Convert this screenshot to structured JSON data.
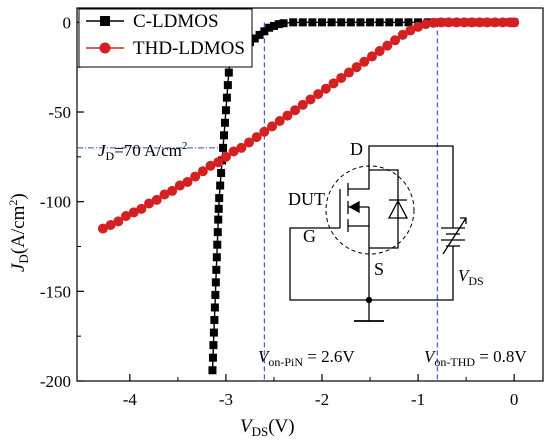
{
  "chart_data": {
    "type": "scatter",
    "xlabel": {
      "main": "V",
      "sub": "DS",
      "unit": "(V)"
    },
    "ylabel": {
      "main": "J",
      "sub": "D",
      "unit": "(A/cm",
      "sup": "2",
      "close": ")"
    },
    "xlim": [
      -4.55,
      0.3
    ],
    "ylim": [
      -200,
      8
    ],
    "x_ticks": [
      -4,
      -3,
      -2,
      -1,
      0
    ],
    "y_ticks": [
      0,
      -50,
      -100,
      -150,
      -200
    ],
    "grid": false,
    "legend_position": "top-left",
    "series": [
      {
        "name": "C-LDMOS",
        "color": "#000000",
        "marker": "square",
        "points": [
          [
            -3.14,
            -194
          ],
          [
            -3.135,
            -187
          ],
          [
            -3.13,
            -180
          ],
          [
            -3.125,
            -173
          ],
          [
            -3.12,
            -166
          ],
          [
            -3.115,
            -159
          ],
          [
            -3.11,
            -152
          ],
          [
            -3.105,
            -145
          ],
          [
            -3.1,
            -138
          ],
          [
            -3.095,
            -131
          ],
          [
            -3.09,
            -124
          ],
          [
            -3.085,
            -117
          ],
          [
            -3.08,
            -110
          ],
          [
            -3.075,
            -104
          ],
          [
            -3.07,
            -98
          ],
          [
            -3.06,
            -91
          ],
          [
            -3.05,
            -84
          ],
          [
            -3.04,
            -77
          ],
          [
            -3.03,
            -70
          ],
          [
            -3.02,
            -63
          ],
          [
            -3.01,
            -56
          ],
          [
            -3.0,
            -49
          ],
          [
            -2.99,
            -42
          ],
          [
            -2.98,
            -35
          ],
          [
            -2.97,
            -28
          ],
          [
            -2.96,
            -22
          ],
          [
            -2.94,
            -18
          ],
          [
            -2.91,
            -16
          ],
          [
            -2.88,
            -15
          ],
          [
            -2.84,
            -14
          ],
          [
            -2.8,
            -13
          ],
          [
            -2.75,
            -11
          ],
          [
            -2.7,
            -9
          ],
          [
            -2.65,
            -7
          ],
          [
            -2.6,
            -5
          ],
          [
            -2.55,
            -3
          ],
          [
            -2.5,
            -2
          ],
          [
            -2.45,
            -1
          ],
          [
            -2.4,
            -0.5
          ],
          [
            -2.3,
            0
          ],
          [
            -2.2,
            0
          ],
          [
            -2.1,
            0
          ],
          [
            -2.0,
            0
          ],
          [
            -1.9,
            0
          ],
          [
            -1.8,
            0
          ],
          [
            -1.7,
            0
          ],
          [
            -1.6,
            0
          ],
          [
            -1.5,
            0
          ],
          [
            -1.4,
            0
          ],
          [
            -1.3,
            0
          ],
          [
            -1.2,
            0
          ],
          [
            -1.1,
            0
          ],
          [
            -1.0,
            0
          ],
          [
            -0.9,
            0
          ],
          [
            -0.8,
            0
          ],
          [
            -0.7,
            0
          ],
          [
            -0.6,
            0
          ],
          [
            -0.5,
            0
          ],
          [
            -0.4,
            0
          ],
          [
            -0.3,
            0
          ],
          [
            -0.2,
            0
          ],
          [
            -0.1,
            0
          ],
          [
            0.0,
            0
          ]
        ]
      },
      {
        "name": "THD-LDMOS",
        "color": "#d42020",
        "marker": "circle",
        "points": [
          [
            -4.28,
            -115
          ],
          [
            -4.2,
            -113
          ],
          [
            -4.12,
            -111
          ],
          [
            -4.04,
            -108
          ],
          [
            -3.96,
            -106
          ],
          [
            -3.88,
            -104
          ],
          [
            -3.8,
            -101
          ],
          [
            -3.72,
            -99
          ],
          [
            -3.64,
            -96
          ],
          [
            -3.56,
            -94
          ],
          [
            -3.48,
            -91
          ],
          [
            -3.4,
            -89
          ],
          [
            -3.32,
            -86
          ],
          [
            -3.24,
            -83
          ],
          [
            -3.16,
            -80
          ],
          [
            -3.08,
            -78
          ],
          [
            -3.0,
            -75
          ],
          [
            -2.92,
            -72
          ],
          [
            -2.84,
            -70
          ],
          [
            -2.76,
            -67
          ],
          [
            -2.68,
            -64
          ],
          [
            -2.6,
            -61
          ],
          [
            -2.52,
            -58
          ],
          [
            -2.44,
            -55
          ],
          [
            -2.36,
            -52
          ],
          [
            -2.28,
            -49
          ],
          [
            -2.2,
            -46
          ],
          [
            -2.12,
            -43
          ],
          [
            -2.04,
            -40
          ],
          [
            -1.96,
            -37
          ],
          [
            -1.88,
            -34
          ],
          [
            -1.8,
            -31
          ],
          [
            -1.72,
            -28
          ],
          [
            -1.64,
            -25
          ],
          [
            -1.56,
            -22
          ],
          [
            -1.48,
            -19
          ],
          [
            -1.4,
            -16
          ],
          [
            -1.32,
            -13
          ],
          [
            -1.24,
            -10
          ],
          [
            -1.16,
            -7
          ],
          [
            -1.08,
            -4.5
          ],
          [
            -1.0,
            -2.5
          ],
          [
            -0.92,
            -1
          ],
          [
            -0.84,
            -0.2
          ],
          [
            -0.76,
            0
          ],
          [
            -0.68,
            0
          ],
          [
            -0.6,
            0
          ],
          [
            -0.52,
            0
          ],
          [
            -0.44,
            0
          ],
          [
            -0.36,
            0
          ],
          [
            -0.28,
            0
          ],
          [
            -0.2,
            0
          ],
          [
            -0.12,
            0
          ],
          [
            -0.04,
            0
          ],
          [
            0.0,
            0
          ]
        ]
      }
    ],
    "vlines": [
      {
        "x": -2.6,
        "color": "#2b4ad1",
        "y_from": -200,
        "y_to": 0
      },
      {
        "x": -0.8,
        "color": "#2b4ad1",
        "y_from": -200,
        "y_to": 0
      }
    ],
    "hline": {
      "y": -70,
      "x_from": -4.55,
      "x_to": -3.0,
      "color": "#2b4ad1"
    },
    "annotations": {
      "jd": {
        "main": "J",
        "sub": "D",
        "text": "=70 A/cm",
        "sup": "2"
      },
      "von_pin": {
        "main": "V",
        "sub": "on-PiN",
        "text": " = 2.6V"
      },
      "von_thd": {
        "main": "V",
        "sub": "on-THD",
        "text": " = 0.8V"
      }
    },
    "inset_labels": {
      "drain": "D",
      "dut": "DUT",
      "gate": "G",
      "source": "S",
      "vds_main": "V",
      "vds_sub": "DS"
    }
  }
}
